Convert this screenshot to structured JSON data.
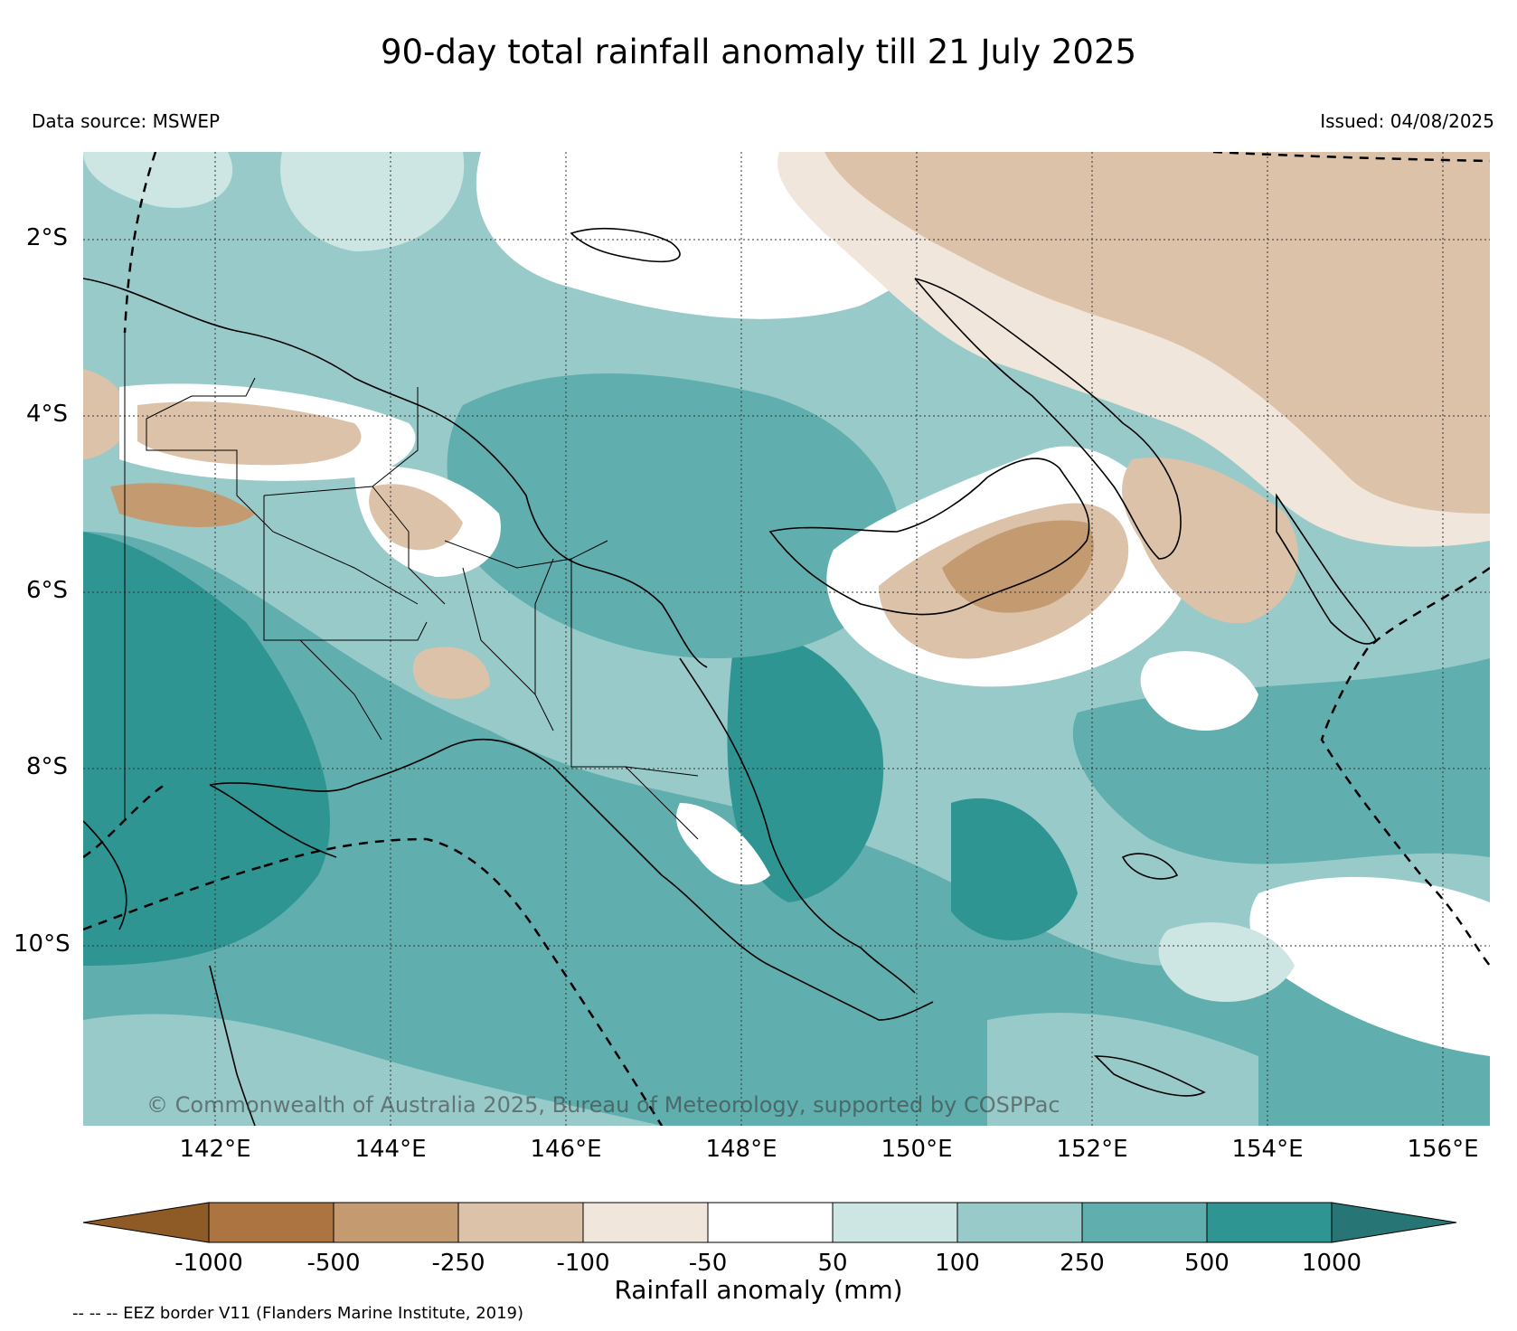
{
  "header": {
    "title": "90-day total rainfall anomaly till 21 July 2025",
    "data_source": "Data source: MSWEP",
    "issued": "Issued: 04/08/2025"
  },
  "map": {
    "lat_labels": [
      "2°S",
      "4°S",
      "6°S",
      "8°S",
      "10°S"
    ],
    "lon_labels": [
      "142°E",
      "144°E",
      "146°E",
      "148°E",
      "150°E",
      "152°E",
      "154°E",
      "156°E"
    ],
    "copyright": "© Commonwealth of Australia 2025, Bureau of Meteorology, supported by COSPPac"
  },
  "legend": {
    "label": "Rainfall anomaly (mm)",
    "ticks": [
      "-1000",
      "-500",
      "-250",
      "-100",
      "-50",
      "50",
      "100",
      "250",
      "500",
      "1000"
    ],
    "colors": [
      "#8e5a25",
      "#ab7440",
      "#c49b70",
      "#dcc2a8",
      "#f1e6dc",
      "#ffffff",
      "#cde5e3",
      "#98caca",
      "#60aeae",
      "#2e9592",
      "#277574"
    ],
    "eez_note": "-- -- -- EEZ border V11 (Flanders Marine Institute, 2019)"
  }
}
